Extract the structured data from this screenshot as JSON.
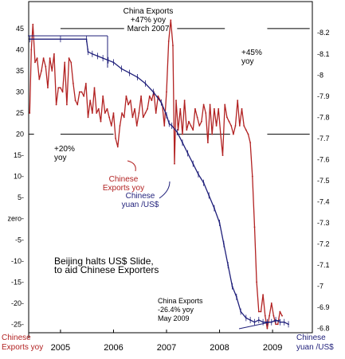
{
  "chart_data": {
    "type": "line",
    "x_ticks": [
      "2005",
      "2006",
      "2007",
      "2008",
      "2009"
    ],
    "left_axis": {
      "label_lines": [
        "Chinese",
        "Exports yoy"
      ],
      "ylim": [
        -27,
        48
      ],
      "ticks": [
        {
          "value": 45,
          "label": "45"
        },
        {
          "value": 40,
          "label": "40"
        },
        {
          "value": 35,
          "label": "35"
        },
        {
          "value": 30,
          "label": "30"
        },
        {
          "value": 25,
          "label": "25"
        },
        {
          "value": 20,
          "label": "20"
        },
        {
          "value": 15,
          "label": "15-"
        },
        {
          "value": 10,
          "label": "10-"
        },
        {
          "value": 5,
          "label": "5-"
        },
        {
          "value": 0,
          "label": "zero-"
        },
        {
          "value": -5,
          "label": "-5-"
        },
        {
          "value": -10,
          "label": "-10-"
        },
        {
          "value": -15,
          "label": "-15-"
        },
        {
          "value": -20,
          "label": "-20-"
        },
        {
          "value": -25,
          "label": "-25-"
        }
      ]
    },
    "right_axis": {
      "label_lines": [
        "Chinese",
        "yuan /US$"
      ],
      "ylim": [
        6.78,
        8.28
      ],
      "ticks": [
        {
          "value": 8.2,
          "label": "-8.2"
        },
        {
          "value": 8.1,
          "label": "-8.1"
        },
        {
          "value": 8.0,
          "label": "-8"
        },
        {
          "value": 7.9,
          "label": "-7.9"
        },
        {
          "value": 7.8,
          "label": "-7.8"
        },
        {
          "value": 7.7,
          "label": "-7.7"
        },
        {
          "value": 7.6,
          "label": "-7.6"
        },
        {
          "value": 7.5,
          "label": "-7.5"
        },
        {
          "value": 7.4,
          "label": "-7.4"
        },
        {
          "value": 7.3,
          "label": "-7.3"
        },
        {
          "value": 7.2,
          "label": "-7.2"
        },
        {
          "value": 7.1,
          "label": "-7.1"
        },
        {
          "value": 7.0,
          "label": "-7"
        },
        {
          "value": 6.9,
          "label": "-6.9"
        },
        {
          "value": 6.8,
          "label": "-6.8"
        }
      ]
    },
    "reference_lines": [
      {
        "axis": "left",
        "value": 45,
        "segments": [
          [
            2005.0,
            2006.2
          ],
          [
            2007.2,
            2008.1
          ],
          [
            2008.9,
            2009.7
          ]
        ]
      },
      {
        "axis": "left",
        "value": 20,
        "segments": [
          [
            2004.4,
            2004.5
          ],
          [
            2005.0,
            2006.0
          ],
          [
            2007.2,
            2008.2
          ],
          [
            2008.9,
            2009.7
          ]
        ]
      }
    ],
    "series": [
      {
        "name": "Chinese Exports yoy",
        "axis": "left",
        "color": "#b22222",
        "points": [
          [
            2004.42,
            25
          ],
          [
            2004.45,
            40
          ],
          [
            2004.48,
            46
          ],
          [
            2004.52,
            37
          ],
          [
            2004.56,
            38
          ],
          [
            2004.6,
            33
          ],
          [
            2004.64,
            35
          ],
          [
            2004.68,
            38
          ],
          [
            2004.72,
            36
          ],
          [
            2004.76,
            31
          ],
          [
            2004.8,
            38
          ],
          [
            2004.84,
            35
          ],
          [
            2004.88,
            39
          ],
          [
            2004.92,
            27
          ],
          [
            2004.96,
            31
          ],
          [
            2005.0,
            31
          ],
          [
            2005.04,
            30
          ],
          [
            2005.08,
            37
          ],
          [
            2005.12,
            27
          ],
          [
            2005.16,
            38
          ],
          [
            2005.2,
            37
          ],
          [
            2005.24,
            32
          ],
          [
            2005.28,
            28
          ],
          [
            2005.32,
            27
          ],
          [
            2005.36,
            30
          ],
          [
            2005.4,
            30
          ],
          [
            2005.44,
            29
          ],
          [
            2005.48,
            32
          ],
          [
            2005.52,
            24
          ],
          [
            2005.56,
            28
          ],
          [
            2005.6,
            25
          ],
          [
            2005.64,
            31
          ],
          [
            2005.68,
            25
          ],
          [
            2005.72,
            26
          ],
          [
            2005.76,
            23
          ],
          [
            2005.8,
            29
          ],
          [
            2005.84,
            25
          ],
          [
            2005.88,
            26
          ],
          [
            2005.92,
            24
          ],
          [
            2005.96,
            22
          ],
          [
            2006.0,
            25
          ],
          [
            2006.04,
            19
          ],
          [
            2006.08,
            17
          ],
          [
            2006.12,
            22
          ],
          [
            2006.16,
            25
          ],
          [
            2006.2,
            24
          ],
          [
            2006.24,
            29
          ],
          [
            2006.28,
            27
          ],
          [
            2006.32,
            28
          ],
          [
            2006.36,
            24
          ],
          [
            2006.4,
            26
          ],
          [
            2006.44,
            22
          ],
          [
            2006.48,
            25
          ],
          [
            2006.52,
            29
          ],
          [
            2006.56,
            24
          ],
          [
            2006.6,
            25
          ],
          [
            2006.64,
            26
          ],
          [
            2006.68,
            29
          ],
          [
            2006.72,
            28
          ],
          [
            2006.76,
            30
          ],
          [
            2006.8,
            25
          ],
          [
            2006.84,
            29
          ],
          [
            2006.88,
            28
          ],
          [
            2006.92,
            27
          ],
          [
            2006.96,
            22
          ],
          [
            2007.0,
            30
          ],
          [
            2007.04,
            42
          ],
          [
            2007.08,
            47
          ],
          [
            2007.12,
            41
          ],
          [
            2007.15,
            13
          ],
          [
            2007.18,
            28
          ],
          [
            2007.22,
            21
          ],
          [
            2007.26,
            26
          ],
          [
            2007.3,
            20
          ],
          [
            2007.34,
            28
          ],
          [
            2007.38,
            21
          ],
          [
            2007.42,
            23
          ],
          [
            2007.46,
            22
          ],
          [
            2007.5,
            21
          ],
          [
            2007.54,
            26
          ],
          [
            2007.58,
            24
          ],
          [
            2007.62,
            22
          ],
          [
            2007.66,
            23
          ],
          [
            2007.7,
            27
          ],
          [
            2007.74,
            25
          ],
          [
            2007.78,
            18
          ],
          [
            2007.82,
            27
          ],
          [
            2007.86,
            20
          ],
          [
            2007.9,
            26
          ],
          [
            2007.94,
            22
          ],
          [
            2007.98,
            26
          ],
          [
            2008.02,
            20
          ],
          [
            2008.06,
            15
          ],
          [
            2008.1,
            27
          ],
          [
            2008.14,
            24
          ],
          [
            2008.18,
            23
          ],
          [
            2008.22,
            22
          ],
          [
            2008.26,
            20
          ],
          [
            2008.3,
            22
          ],
          [
            2008.34,
            28
          ],
          [
            2008.38,
            22
          ],
          [
            2008.42,
            26
          ],
          [
            2008.46,
            22
          ],
          [
            2008.5,
            21
          ],
          [
            2008.54,
            20
          ],
          [
            2008.58,
            18
          ],
          [
            2008.62,
            10
          ],
          [
            2008.66,
            -2
          ],
          [
            2008.7,
            -15
          ],
          [
            2008.74,
            -22
          ],
          [
            2008.78,
            -22
          ],
          [
            2008.82,
            -18
          ],
          [
            2008.86,
            -23
          ],
          [
            2008.9,
            -26
          ],
          [
            2008.94,
            -23
          ],
          [
            2008.98,
            -20
          ],
          [
            2009.02,
            -23
          ],
          [
            2009.06,
            -25
          ],
          [
            2009.1,
            -25
          ],
          [
            2009.14,
            -22
          ],
          [
            2009.18,
            -23
          ]
        ]
      },
      {
        "name": "Chinese yuan /US$",
        "axis": "right",
        "color": "#1f1f7a",
        "points": [
          [
            2004.42,
            8.17
          ],
          [
            2005.0,
            8.17
          ],
          [
            2005.49,
            8.17
          ],
          [
            2005.52,
            8.11
          ],
          [
            2005.6,
            8.1
          ],
          [
            2005.7,
            8.09
          ],
          [
            2005.8,
            8.08
          ],
          [
            2005.9,
            8.07
          ],
          [
            2006.0,
            8.06
          ],
          [
            2006.15,
            8.03
          ],
          [
            2006.3,
            8.01
          ],
          [
            2006.45,
            7.99
          ],
          [
            2006.6,
            7.96
          ],
          [
            2006.75,
            7.92
          ],
          [
            2006.9,
            7.87
          ],
          [
            2007.0,
            7.81
          ],
          [
            2007.05,
            7.77
          ],
          [
            2007.1,
            7.76
          ],
          [
            2007.2,
            7.73
          ],
          [
            2007.3,
            7.68
          ],
          [
            2007.4,
            7.63
          ],
          [
            2007.5,
            7.58
          ],
          [
            2007.6,
            7.53
          ],
          [
            2007.7,
            7.49
          ],
          [
            2007.8,
            7.43
          ],
          [
            2007.9,
            7.37
          ],
          [
            2008.0,
            7.3
          ],
          [
            2008.08,
            7.2
          ],
          [
            2008.16,
            7.1
          ],
          [
            2008.24,
            7.0
          ],
          [
            2008.32,
            6.95
          ],
          [
            2008.4,
            6.88
          ],
          [
            2008.5,
            6.85
          ],
          [
            2008.58,
            6.84
          ],
          [
            2008.66,
            6.83
          ],
          [
            2008.74,
            6.84
          ],
          [
            2008.82,
            6.83
          ],
          [
            2008.9,
            6.83
          ],
          [
            2008.98,
            6.83
          ],
          [
            2009.06,
            6.84
          ],
          [
            2009.14,
            6.83
          ],
          [
            2009.22,
            6.83
          ],
          [
            2009.3,
            6.82
          ]
        ]
      }
    ],
    "annotations": [
      {
        "key": "china_exports_2007",
        "lines": [
          "China Exports",
          "+47% yoy",
          "March 2007"
        ]
      },
      {
        "key": "plus45",
        "lines": [
          "+45%",
          "yoy"
        ]
      },
      {
        "key": "plus20",
        "lines": [
          "+20%",
          "yoy"
        ]
      },
      {
        "key": "series_exports",
        "lines": [
          "Chinese",
          "Exports yoy"
        ]
      },
      {
        "key": "series_yuan",
        "lines": [
          "Chinese",
          "yuan /US$"
        ]
      },
      {
        "key": "beijing",
        "lines": [
          "Beijing halts US$ Slide,",
          "to aid Chinese Exporters"
        ]
      },
      {
        "key": "may2009",
        "lines": [
          "China Exports",
          "-26.4% yoy",
          "May 2009"
        ]
      }
    ]
  }
}
